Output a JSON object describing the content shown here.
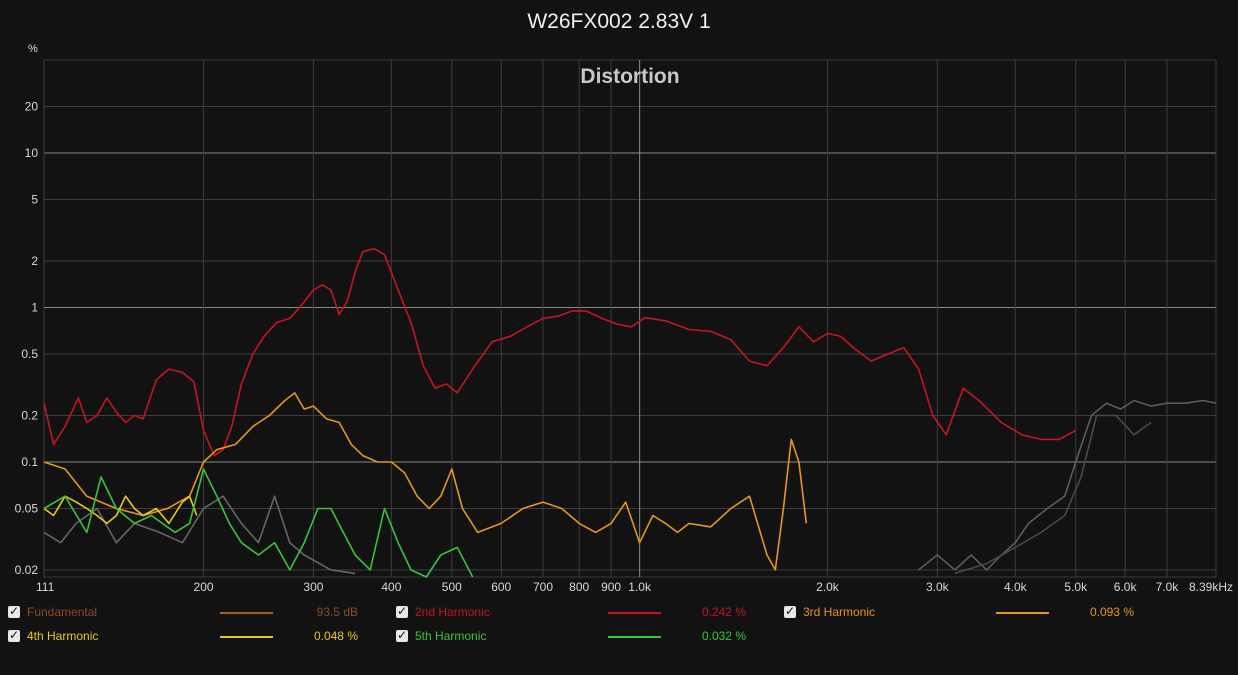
{
  "title": "W26FX002 2.83V 1",
  "chart_data": {
    "type": "line",
    "title": "Distortion",
    "ylabel": "%",
    "x_unit": "kHz",
    "xscale": "log",
    "yscale": "log",
    "xlim": [
      111,
      8390
    ],
    "ylim": [
      0.018,
      40
    ],
    "grid": true,
    "y_ticks": [
      20,
      10,
      5,
      2,
      1,
      0.5,
      0.2,
      0.1,
      0.05,
      0.02
    ],
    "y_tick_labels": [
      "20",
      "10",
      "5",
      "2",
      "1",
      "0.5",
      "0.2",
      "0.1",
      "0.05",
      "0.02"
    ],
    "x_ticks": [
      111,
      200,
      300,
      400,
      500,
      600,
      700,
      800,
      900,
      1000,
      2000,
      3000,
      4000,
      5000,
      6000,
      7000,
      8390
    ],
    "x_tick_labels": [
      "111",
      "200",
      "300",
      "400",
      "500",
      "600",
      "700",
      "800",
      "900",
      "1.0k",
      "2.0k",
      "3.0k",
      "4.0k",
      "5.0k",
      "6.0k",
      "7.0k",
      "8.39kHz"
    ],
    "legend_position": "bottom",
    "series": [
      {
        "name": "Fundamental",
        "value_label": "93.5 dB",
        "color": "#8c4a22",
        "swatch": "#a86028",
        "x": [],
        "y": []
      },
      {
        "name": "2nd Harmonic",
        "value_label": "0.242 %",
        "color": "#c4161c",
        "x": [
          111,
          115,
          120,
          126,
          130,
          135,
          140,
          145,
          150,
          155,
          160,
          168,
          176,
          185,
          193,
          200,
          208,
          215,
          222,
          230,
          240,
          250,
          262,
          275,
          288,
          300,
          310,
          320,
          330,
          340,
          350,
          360,
          375,
          390,
          410,
          430,
          450,
          470,
          490,
          510,
          540,
          580,
          620,
          660,
          700,
          740,
          780,
          820,
          870,
          920,
          970,
          1020,
          1100,
          1200,
          1300,
          1400,
          1500,
          1600,
          1700,
          1800,
          1900,
          2000,
          2100,
          2200,
          2350,
          2500,
          2650,
          2800,
          2950,
          3100,
          3300,
          3500,
          3800,
          4100,
          4400,
          4700,
          5000
        ],
        "y": [
          0.24,
          0.13,
          0.17,
          0.26,
          0.18,
          0.2,
          0.26,
          0.21,
          0.18,
          0.2,
          0.19,
          0.34,
          0.4,
          0.38,
          0.33,
          0.16,
          0.11,
          0.12,
          0.17,
          0.32,
          0.5,
          0.65,
          0.8,
          0.85,
          1.05,
          1.3,
          1.4,
          1.3,
          0.9,
          1.1,
          1.7,
          2.3,
          2.4,
          2.2,
          1.3,
          0.8,
          0.42,
          0.3,
          0.32,
          0.28,
          0.4,
          0.6,
          0.65,
          0.75,
          0.85,
          0.88,
          0.95,
          0.95,
          0.85,
          0.78,
          0.75,
          0.86,
          0.82,
          0.72,
          0.7,
          0.62,
          0.45,
          0.42,
          0.55,
          0.75,
          0.6,
          0.68,
          0.65,
          0.55,
          0.45,
          0.5,
          0.55,
          0.4,
          0.2,
          0.15,
          0.3,
          0.25,
          0.18,
          0.15,
          0.14,
          0.14,
          0.16
        ]
      },
      {
        "name": "3rd Harmonic",
        "value_label": "0.093 %",
        "color": "#e8951e",
        "x": [
          111,
          120,
          130,
          145,
          160,
          175,
          190,
          200,
          210,
          225,
          240,
          255,
          270,
          280,
          290,
          300,
          315,
          330,
          345,
          360,
          380,
          400,
          420,
          440,
          460,
          480,
          500,
          520,
          550,
          600,
          650,
          700,
          750,
          800,
          850,
          900,
          950,
          1000,
          1050,
          1100,
          1150,
          1200,
          1300,
          1400,
          1500,
          1600,
          1650,
          1700,
          1750,
          1800,
          1850
        ],
        "y": [
          0.1,
          0.09,
          0.06,
          0.05,
          0.045,
          0.05,
          0.06,
          0.1,
          0.12,
          0.13,
          0.17,
          0.2,
          0.25,
          0.28,
          0.22,
          0.23,
          0.19,
          0.18,
          0.13,
          0.11,
          0.1,
          0.1,
          0.085,
          0.06,
          0.05,
          0.06,
          0.09,
          0.05,
          0.035,
          0.04,
          0.05,
          0.055,
          0.05,
          0.04,
          0.035,
          0.04,
          0.055,
          0.03,
          0.045,
          0.04,
          0.035,
          0.04,
          0.038,
          0.05,
          0.06,
          0.025,
          0.02,
          0.05,
          0.14,
          0.1,
          0.04
        ]
      },
      {
        "name": "4th Harmonic",
        "value_label": "0.048 %",
        "color": "#e8c81e",
        "x": [
          111,
          115,
          120,
          125,
          130,
          135,
          140,
          145,
          150,
          155,
          160,
          168,
          176,
          185,
          190,
          195
        ],
        "y": [
          0.05,
          0.045,
          0.06,
          0.055,
          0.05,
          0.045,
          0.04,
          0.045,
          0.06,
          0.05,
          0.045,
          0.05,
          0.04,
          0.055,
          0.06,
          0.045
        ]
      },
      {
        "name": "5th Harmonic",
        "value_label": "0.032 %",
        "color": "#3ac43a",
        "x": [
          111,
          120,
          130,
          137,
          145,
          155,
          165,
          180,
          190,
          200,
          210,
          220,
          230,
          245,
          260,
          275,
          290,
          305,
          320,
          335,
          350,
          370,
          390,
          410,
          430,
          455,
          480,
          510,
          540
        ],
        "y": [
          0.05,
          0.06,
          0.035,
          0.08,
          0.05,
          0.04,
          0.045,
          0.035,
          0.04,
          0.09,
          0.06,
          0.04,
          0.03,
          0.025,
          0.03,
          0.02,
          0.03,
          0.05,
          0.05,
          0.035,
          0.025,
          0.02,
          0.05,
          0.03,
          0.02,
          0.018,
          0.025,
          0.028,
          0.018
        ]
      }
    ],
    "unnamed_overlay_traces": [
      {
        "color": "#666666",
        "x": [
          111,
          118,
          125,
          135,
          145,
          155,
          170,
          185,
          200,
          215,
          230,
          245,
          260,
          275,
          290,
          320,
          350
        ],
        "y": [
          0.035,
          0.03,
          0.04,
          0.05,
          0.03,
          0.04,
          0.035,
          0.03,
          0.05,
          0.06,
          0.04,
          0.03,
          0.06,
          0.03,
          0.025,
          0.02,
          0.019
        ]
      },
      {
        "color": "#5c5c5c",
        "x": [
          2800,
          3000,
          3200,
          3400,
          3600,
          3800,
          4000,
          4200,
          4500,
          4800,
          5000,
          5300,
          5600,
          5900,
          6200,
          6600,
          7000,
          7500,
          8000,
          8390
        ],
        "y": [
          0.02,
          0.025,
          0.02,
          0.025,
          0.02,
          0.025,
          0.03,
          0.04,
          0.05,
          0.06,
          0.1,
          0.2,
          0.24,
          0.22,
          0.25,
          0.23,
          0.24,
          0.24,
          0.25,
          0.24
        ]
      },
      {
        "color": "#4a4a4a",
        "x": [
          3200,
          3600,
          4000,
          4400,
          4800,
          5100,
          5400,
          5800,
          6200,
          6600
        ],
        "y": [
          0.019,
          0.022,
          0.028,
          0.035,
          0.045,
          0.08,
          0.2,
          0.2,
          0.15,
          0.18
        ]
      }
    ]
  }
}
